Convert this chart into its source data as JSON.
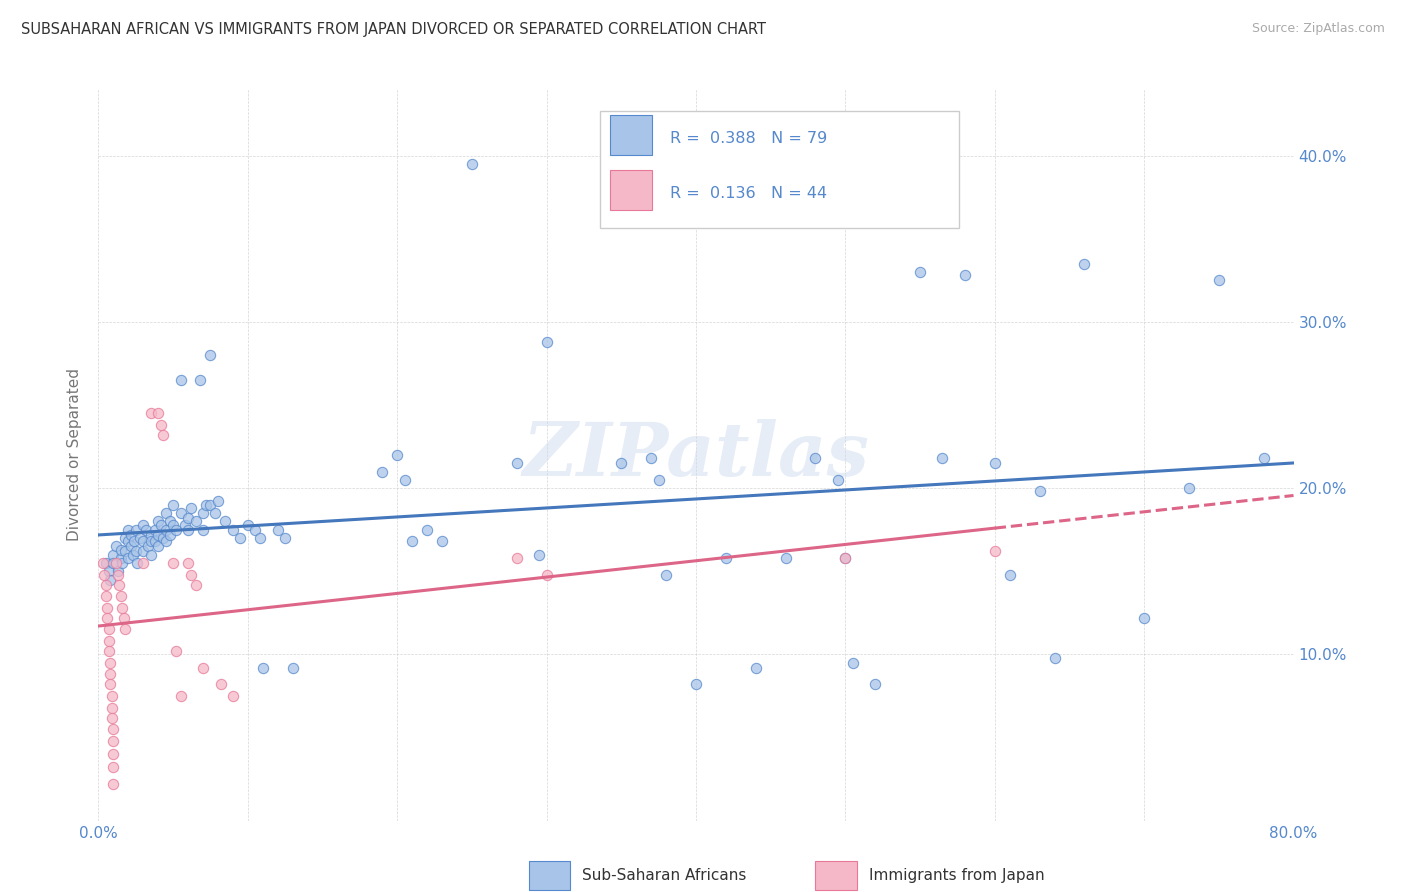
{
  "title": "SUBSAHARAN AFRICAN VS IMMIGRANTS FROM JAPAN DIVORCED OR SEPARATED CORRELATION CHART",
  "source": "Source: ZipAtlas.com",
  "ylabel_label": "Divorced or Separated",
  "xlim": [
    0.0,
    0.8
  ],
  "ylim": [
    0.0,
    0.44
  ],
  "xtick_positions": [
    0.0,
    0.1,
    0.2,
    0.3,
    0.4,
    0.5,
    0.6,
    0.7,
    0.8
  ],
  "xtick_labels": [
    "0.0%",
    "",
    "",
    "",
    "",
    "",
    "",
    "",
    "80.0%"
  ],
  "ytick_positions": [
    0.0,
    0.1,
    0.2,
    0.3,
    0.4
  ],
  "ytick_labels_right": [
    "",
    "10.0%",
    "20.0%",
    "30.0%",
    "40.0%"
  ],
  "legend_blue_label": "Sub-Saharan Africans",
  "legend_pink_label": "Immigrants from Japan",
  "R_blue": "0.388",
  "N_blue": "79",
  "R_pink": "0.136",
  "N_pink": "44",
  "blue_fill": "#a8c4e8",
  "pink_fill": "#f5b8c8",
  "blue_edge": "#5588cc",
  "pink_edge": "#e87898",
  "blue_line": "#4477bb",
  "pink_line": "#dd6688",
  "tick_color": "#5588cc",
  "watermark": "ZIPatlas",
  "blue_scatter": [
    [
      0.005,
      0.155
    ],
    [
      0.007,
      0.15
    ],
    [
      0.008,
      0.145
    ],
    [
      0.01,
      0.16
    ],
    [
      0.01,
      0.155
    ],
    [
      0.012,
      0.165
    ],
    [
      0.013,
      0.15
    ],
    [
      0.015,
      0.158
    ],
    [
      0.015,
      0.163
    ],
    [
      0.016,
      0.155
    ],
    [
      0.018,
      0.17
    ],
    [
      0.018,
      0.162
    ],
    [
      0.02,
      0.175
    ],
    [
      0.02,
      0.168
    ],
    [
      0.02,
      0.158
    ],
    [
      0.022,
      0.165
    ],
    [
      0.022,
      0.172
    ],
    [
      0.023,
      0.16
    ],
    [
      0.024,
      0.168
    ],
    [
      0.025,
      0.175
    ],
    [
      0.025,
      0.162
    ],
    [
      0.026,
      0.155
    ],
    [
      0.028,
      0.17
    ],
    [
      0.03,
      0.178
    ],
    [
      0.03,
      0.168
    ],
    [
      0.03,
      0.162
    ],
    [
      0.032,
      0.175
    ],
    [
      0.033,
      0.165
    ],
    [
      0.035,
      0.172
    ],
    [
      0.035,
      0.168
    ],
    [
      0.035,
      0.16
    ],
    [
      0.038,
      0.175
    ],
    [
      0.038,
      0.168
    ],
    [
      0.04,
      0.18
    ],
    [
      0.04,
      0.172
    ],
    [
      0.04,
      0.165
    ],
    [
      0.042,
      0.178
    ],
    [
      0.043,
      0.17
    ],
    [
      0.045,
      0.175
    ],
    [
      0.045,
      0.185
    ],
    [
      0.045,
      0.168
    ],
    [
      0.048,
      0.18
    ],
    [
      0.048,
      0.172
    ],
    [
      0.05,
      0.19
    ],
    [
      0.05,
      0.178
    ],
    [
      0.052,
      0.175
    ],
    [
      0.055,
      0.185
    ],
    [
      0.055,
      0.265
    ],
    [
      0.058,
      0.178
    ],
    [
      0.06,
      0.182
    ],
    [
      0.06,
      0.175
    ],
    [
      0.062,
      0.188
    ],
    [
      0.065,
      0.18
    ],
    [
      0.068,
      0.265
    ],
    [
      0.07,
      0.185
    ],
    [
      0.07,
      0.175
    ],
    [
      0.072,
      0.19
    ],
    [
      0.075,
      0.28
    ],
    [
      0.075,
      0.19
    ],
    [
      0.078,
      0.185
    ],
    [
      0.08,
      0.192
    ],
    [
      0.085,
      0.18
    ],
    [
      0.09,
      0.175
    ],
    [
      0.095,
      0.17
    ],
    [
      0.1,
      0.178
    ],
    [
      0.105,
      0.175
    ],
    [
      0.108,
      0.17
    ],
    [
      0.11,
      0.092
    ],
    [
      0.12,
      0.175
    ],
    [
      0.125,
      0.17
    ],
    [
      0.13,
      0.092
    ],
    [
      0.19,
      0.21
    ],
    [
      0.2,
      0.22
    ],
    [
      0.205,
      0.205
    ],
    [
      0.21,
      0.168
    ],
    [
      0.22,
      0.175
    ],
    [
      0.23,
      0.168
    ],
    [
      0.25,
      0.395
    ],
    [
      0.28,
      0.215
    ],
    [
      0.295,
      0.16
    ],
    [
      0.3,
      0.288
    ],
    [
      0.35,
      0.215
    ],
    [
      0.37,
      0.218
    ],
    [
      0.375,
      0.205
    ],
    [
      0.38,
      0.148
    ],
    [
      0.4,
      0.082
    ],
    [
      0.42,
      0.158
    ],
    [
      0.44,
      0.092
    ],
    [
      0.46,
      0.158
    ],
    [
      0.48,
      0.218
    ],
    [
      0.495,
      0.205
    ],
    [
      0.5,
      0.158
    ],
    [
      0.505,
      0.095
    ],
    [
      0.52,
      0.082
    ],
    [
      0.55,
      0.33
    ],
    [
      0.565,
      0.218
    ],
    [
      0.58,
      0.328
    ],
    [
      0.6,
      0.215
    ],
    [
      0.61,
      0.148
    ],
    [
      0.63,
      0.198
    ],
    [
      0.64,
      0.098
    ],
    [
      0.66,
      0.335
    ],
    [
      0.7,
      0.122
    ],
    [
      0.73,
      0.2
    ],
    [
      0.75,
      0.325
    ],
    [
      0.78,
      0.218
    ]
  ],
  "pink_scatter": [
    [
      0.003,
      0.155
    ],
    [
      0.004,
      0.148
    ],
    [
      0.005,
      0.142
    ],
    [
      0.005,
      0.135
    ],
    [
      0.006,
      0.128
    ],
    [
      0.006,
      0.122
    ],
    [
      0.007,
      0.115
    ],
    [
      0.007,
      0.108
    ],
    [
      0.007,
      0.102
    ],
    [
      0.008,
      0.095
    ],
    [
      0.008,
      0.088
    ],
    [
      0.008,
      0.082
    ],
    [
      0.009,
      0.075
    ],
    [
      0.009,
      0.068
    ],
    [
      0.009,
      0.062
    ],
    [
      0.01,
      0.055
    ],
    [
      0.01,
      0.048
    ],
    [
      0.01,
      0.04
    ],
    [
      0.01,
      0.032
    ],
    [
      0.01,
      0.022
    ],
    [
      0.012,
      0.155
    ],
    [
      0.013,
      0.148
    ],
    [
      0.014,
      0.142
    ],
    [
      0.015,
      0.135
    ],
    [
      0.016,
      0.128
    ],
    [
      0.017,
      0.122
    ],
    [
      0.018,
      0.115
    ],
    [
      0.03,
      0.155
    ],
    [
      0.035,
      0.245
    ],
    [
      0.04,
      0.245
    ],
    [
      0.042,
      0.238
    ],
    [
      0.043,
      0.232
    ],
    [
      0.05,
      0.155
    ],
    [
      0.052,
      0.102
    ],
    [
      0.055,
      0.075
    ],
    [
      0.06,
      0.155
    ],
    [
      0.062,
      0.148
    ],
    [
      0.065,
      0.142
    ],
    [
      0.07,
      0.092
    ],
    [
      0.082,
      0.082
    ],
    [
      0.09,
      0.075
    ],
    [
      0.28,
      0.158
    ],
    [
      0.3,
      0.148
    ],
    [
      0.5,
      0.158
    ],
    [
      0.6,
      0.162
    ]
  ]
}
